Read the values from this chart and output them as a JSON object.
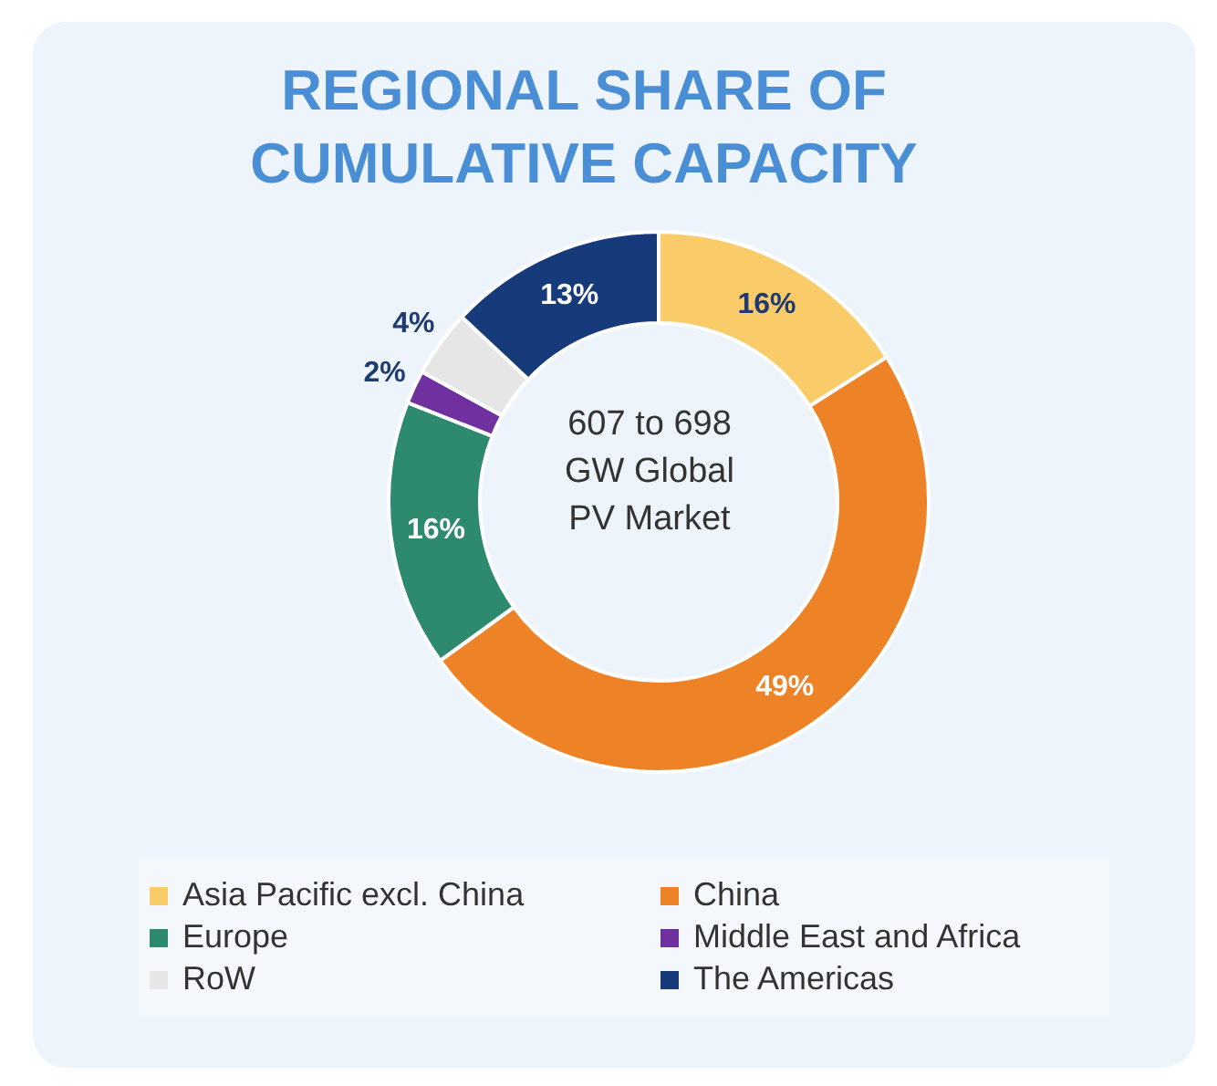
{
  "chart_data": {
    "type": "donut",
    "title": "REGIONAL SHARE OF CUMULATIVE CAPACITY",
    "categories": [
      "Asia Pacific excl. China",
      "China",
      "Europe",
      "Middle East and Africa",
      "RoW",
      "The Americas"
    ],
    "values": [
      16,
      49,
      16,
      2,
      4,
      13
    ],
    "value_labels": [
      "16%",
      "49%",
      "16%",
      "2%",
      "4%",
      "13%"
    ],
    "colors": [
      "#f9cb69",
      "#ee8227",
      "#2e8a6f",
      "#7030a0",
      "#e6e6e6",
      "#173a7b"
    ],
    "annotations": [
      "607 to 698 GW Global PV Market"
    ],
    "legend": "bottom"
  }
}
